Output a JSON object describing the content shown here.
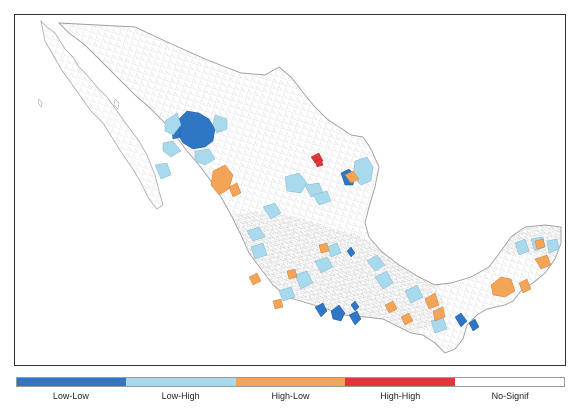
{
  "map": {
    "legend": [
      {
        "label": "Low-Low",
        "color": "#2f76c4"
      },
      {
        "label": "Low-High",
        "color": "#a9d9ec"
      },
      {
        "label": "High-Low",
        "color": "#f3a457"
      },
      {
        "label": "High-High",
        "color": "#e0373b"
      },
      {
        "label": "No-Signif",
        "color": "#ffffff"
      }
    ],
    "colors": {
      "border": "#b8b8b8",
      "land": "#ffffff",
      "frame": "#333333"
    }
  }
}
